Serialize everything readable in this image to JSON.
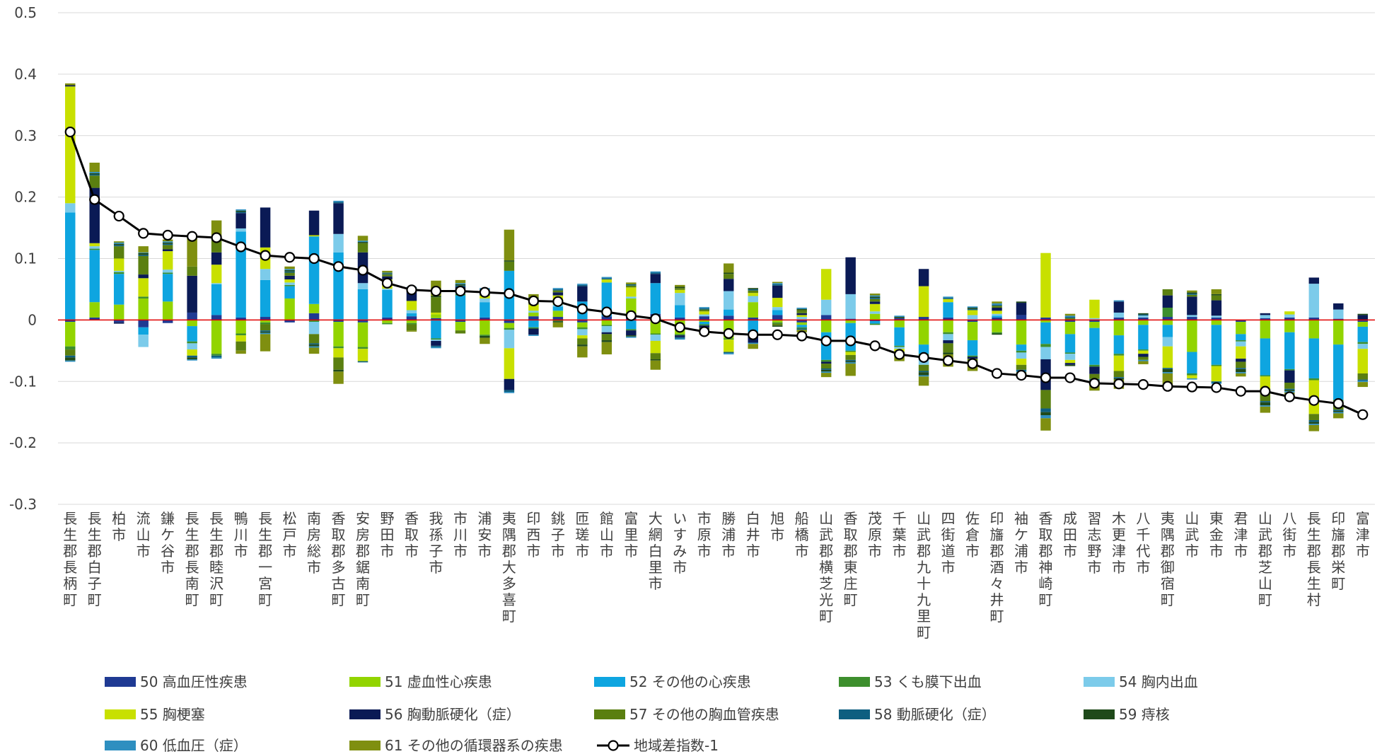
{
  "chart_data": {
    "type": "bar",
    "stacked": true,
    "ylim": [
      -0.3,
      0.5
    ],
    "yticks": [
      -0.3,
      -0.2,
      -0.1,
      0,
      0.1,
      0.2,
      0.3,
      0.4,
      0.5
    ],
    "ytick_labels": [
      "-0.3",
      "-0.2",
      "-0.1",
      "0",
      "0.1",
      "0.2",
      "0.3",
      "0.4",
      "0.5"
    ],
    "grid": true,
    "zero_line_color": "#e00000",
    "legend_position": "bottom",
    "categories": [
      "長生郡長柄町",
      "長生郡白子町",
      "柏市",
      "流山市",
      "鎌ケ谷市",
      "長生郡長南町",
      "長生郡睦沢町",
      "鴨川市",
      "長生郡一宮町",
      "松戸市",
      "南房総市",
      "香取郡多古町",
      "安房郡鋸南町",
      "野田市",
      "香取市",
      "我孫子市",
      "市川市",
      "浦安市",
      "夷隅郡大多喜町",
      "印西市",
      "銚子市",
      "匝瑳市",
      "館山市",
      "富里市",
      "大網白里市",
      "いすみ市",
      "市原市",
      "勝浦市",
      "白井市",
      "旭市",
      "船橋市",
      "山武郡横芝光町",
      "香取郡東庄町",
      "茂原市",
      "千葉市",
      "山武郡九十九里町",
      "四街道市",
      "佐倉市",
      "印旛郡酒々井町",
      "袖ケ浦市",
      "香取郡神崎町",
      "成田市",
      "習志野市",
      "木更津市",
      "八千代市",
      "夷隅郡御宿町",
      "山武市",
      "東金市",
      "君津市",
      "山武郡芝山町",
      "八街市",
      "長生郡長生村",
      "印旛郡栄町",
      "富津市"
    ],
    "series": [
      {
        "name": "50 高血圧性疾患",
        "color": "#1f3a93",
        "values": [
          -0.003,
          0.004,
          -0.004,
          -0.012,
          -0.005,
          0.012,
          0.008,
          0.004,
          0.005,
          -0.004,
          0.011,
          -0.003,
          -0.004,
          0.004,
          0.006,
          0.003,
          -0.003,
          0.004,
          -0.005,
          0.006,
          0.005,
          -0.004,
          0.006,
          0.005,
          0.01,
          0.004,
          0.006,
          0.007,
          0.004,
          0.008,
          -0.004,
          0.008,
          0.002,
          -0.002,
          0.003,
          0.005,
          0.004,
          -0.003,
          0.004,
          0.008,
          0.004,
          -0.003,
          -0.003,
          0.004,
          0.004,
          0.005,
          0.005,
          0.004,
          -0.003,
          0.003,
          0.004,
          0.004,
          0.002,
          -0.003
        ]
      },
      {
        "name": "51 虚血性心疾患",
        "color": "#92d400",
        "values": [
          -0.04,
          0.025,
          0.025,
          0.035,
          0.03,
          -0.01,
          -0.055,
          -0.022,
          -0.004,
          0.035,
          0.015,
          -0.04,
          -0.04,
          -0.005,
          -0.005,
          0.006,
          -0.014,
          -0.024,
          -0.008,
          0.006,
          0.01,
          -0.008,
          -0.008,
          0.03,
          -0.022,
          -0.023,
          -0.003,
          -0.03,
          0.025,
          -0.004,
          -0.004,
          -0.02,
          -0.005,
          0.01,
          -0.012,
          -0.04,
          -0.02,
          -0.03,
          -0.02,
          -0.04,
          -0.004,
          -0.02,
          -0.01,
          -0.025,
          -0.008,
          -0.008,
          -0.052,
          -0.008,
          -0.02,
          -0.03,
          -0.02,
          -0.03,
          -0.04,
          -0.008
        ]
      },
      {
        "name": "52 その他の心疾患",
        "color": "#0ea5e0",
        "values": [
          0.175,
          0.085,
          0.05,
          -0.012,
          0.045,
          -0.025,
          0.05,
          0.14,
          0.06,
          0.02,
          0.11,
          0.11,
          0.05,
          0.045,
          0.005,
          -0.03,
          0.04,
          0.025,
          0.08,
          -0.012,
          0.007,
          0.03,
          0.055,
          -0.015,
          0.05,
          0.02,
          -0.004,
          0.01,
          -0.025,
          0.008,
          -0.004,
          -0.045,
          -0.045,
          -0.004,
          -0.03,
          -0.015,
          0.025,
          -0.025,
          0.003,
          -0.01,
          -0.035,
          -0.03,
          -0.06,
          -0.03,
          -0.04,
          -0.02,
          -0.035,
          -0.065,
          -0.01,
          -0.06,
          -0.06,
          -0.065,
          -0.09,
          -0.025
        ]
      },
      {
        "name": "53 くも膜下出血",
        "color": "#3d8f2d",
        "values": [
          -0.005,
          0.002,
          0.003,
          0.003,
          0.002,
          -0.003,
          -0.003,
          -0.003,
          -0.003,
          0.002,
          -0.003,
          -0.003,
          -0.003,
          -0.002,
          -0.002,
          -0.002,
          0.002,
          -0.002,
          -0.003,
          -0.002,
          -0.002,
          -0.003,
          -0.002,
          -0.002,
          -0.002,
          -0.002,
          -0.002,
          -0.002,
          -0.002,
          -0.002,
          -0.002,
          -0.003,
          -0.002,
          -0.002,
          -0.002,
          -0.003,
          -0.003,
          -0.002,
          -0.002,
          -0.003,
          -0.005,
          -0.002,
          -0.003,
          -0.003,
          -0.002,
          0.015,
          -0.003,
          -0.002,
          -0.002,
          -0.002,
          -0.002,
          -0.003,
          -0.003,
          -0.003
        ]
      },
      {
        "name": "54 胸内出血",
        "color": "#7ccbea",
        "values": [
          0.015,
          0.004,
          0.002,
          -0.02,
          0.005,
          -0.01,
          0.002,
          0.005,
          0.018,
          0.004,
          -0.02,
          0.03,
          0.01,
          0.002,
          0.005,
          -0.002,
          0.003,
          0.006,
          -0.03,
          0.003,
          0.003,
          -0.01,
          -0.01,
          0.003,
          -0.01,
          0.02,
          0.003,
          0.03,
          0.01,
          0.005,
          0.005,
          0.025,
          0.04,
          0.004,
          -0.003,
          -0.015,
          -0.01,
          0.008,
          0.003,
          -0.01,
          -0.02,
          -0.01,
          0.003,
          0.008,
          0.003,
          -0.015,
          0.003,
          0.003,
          -0.008,
          0.005,
          0.005,
          0.055,
          0.015,
          -0.008
        ]
      },
      {
        "name": "55 胸梗塞",
        "color": "#c8e000",
        "values": [
          0.19,
          0.005,
          0.02,
          0.03,
          0.03,
          -0.01,
          0.03,
          -0.01,
          0.035,
          0.005,
          0.002,
          -0.015,
          -0.02,
          0.015,
          0.015,
          0.003,
          0.005,
          0.005,
          -0.05,
          0.01,
          0.015,
          -0.005,
          0.005,
          0.015,
          -0.02,
          0.005,
          0.005,
          -0.02,
          0.005,
          0.015,
          0.003,
          0.05,
          -0.005,
          0.012,
          -0.005,
          0.05,
          0.005,
          0.008,
          0.005,
          -0.01,
          0.105,
          -0.005,
          0.03,
          -0.025,
          -0.005,
          -0.035,
          -0.005,
          -0.025,
          -0.02,
          -0.02,
          0.005,
          -0.055,
          -0.005,
          -0.04
        ]
      },
      {
        "name": "56 胸動脈硬化（症）",
        "color": "#0a1a55",
        "values": [
          0.002,
          0.09,
          -0.002,
          0.006,
          0.003,
          0.06,
          0.02,
          0.025,
          0.065,
          0.006,
          0.04,
          0.05,
          0.05,
          0.005,
          0.02,
          -0.008,
          0.004,
          0.005,
          -0.018,
          -0.01,
          0.005,
          0.025,
          -0.003,
          -0.008,
          0.015,
          -0.003,
          -0.003,
          0.02,
          -0.01,
          0.02,
          0.003,
          -0.003,
          0.06,
          0.004,
          -0.002,
          0.028,
          -0.005,
          -0.003,
          0.005,
          0.02,
          -0.05,
          -0.003,
          -0.012,
          0.018,
          -0.005,
          0.02,
          0.03,
          0.025,
          -0.005,
          0.003,
          -0.02,
          0.01,
          0.01,
          0.008
        ]
      },
      {
        "name": "57 その他の胸血管疾患",
        "color": "#5a7f10",
        "values": [
          -0.01,
          0.02,
          0.02,
          0.03,
          0.007,
          0.015,
          0.02,
          -0.015,
          -0.01,
          0.005,
          -0.015,
          -0.02,
          0.015,
          0.003,
          -0.01,
          0.025,
          -0.005,
          0.003,
          0.015,
          0.008,
          0.003,
          -0.01,
          -0.01,
          0.003,
          -0.01,
          0.003,
          0.003,
          0.008,
          0.004,
          -0.003,
          0.005,
          -0.008,
          -0.008,
          0.004,
          -0.003,
          -0.01,
          -0.015,
          -0.01,
          0.003,
          -0.008,
          -0.03,
          0.003,
          -0.008,
          -0.01,
          -0.005,
          0.01,
          0.003,
          0.008,
          -0.01,
          -0.02,
          -0.01,
          -0.01,
          -0.008,
          -0.01
        ]
      },
      {
        "name": "58 動脈硬化（症）",
        "color": "#0e5f80",
        "values": [
          -0.003,
          0.002,
          0.002,
          0.002,
          0.002,
          -0.003,
          -0.003,
          0.002,
          -0.002,
          0.002,
          -0.002,
          0.002,
          -0.002,
          0.001,
          0.001,
          -0.002,
          0.002,
          0.002,
          -0.003,
          0.002,
          0.002,
          0.002,
          0.002,
          0.002,
          0.002,
          -0.002,
          0.002,
          -0.002,
          0.002,
          0.002,
          -0.002,
          -0.002,
          -0.002,
          0.002,
          -0.002,
          -0.002,
          0.002,
          0.002,
          0.002,
          -0.002,
          -0.006,
          0.002,
          -0.002,
          -0.002,
          0.002,
          -0.002,
          0.002,
          -0.002,
          -0.002,
          -0.002,
          -0.002,
          -0.003,
          -0.002,
          -0.002
        ]
      },
      {
        "name": "59 痔核",
        "color": "#1f4a1a",
        "values": [
          -0.005,
          0.002,
          0.002,
          0.003,
          0.002,
          -0.003,
          0.002,
          0.002,
          -0.002,
          0.002,
          -0.003,
          -0.003,
          0.002,
          0.001,
          0.001,
          0.002,
          0.002,
          -0.003,
          0.002,
          0.002,
          -0.002,
          -0.003,
          -0.003,
          -0.002,
          -0.002,
          0.002,
          -0.002,
          0.002,
          0.002,
          -0.002,
          0.002,
          -0.003,
          -0.002,
          0.002,
          0.002,
          -0.005,
          -0.003,
          0.002,
          -0.002,
          0.002,
          -0.005,
          -0.002,
          -0.003,
          -0.002,
          0.002,
          -0.005,
          0.002,
          0.002,
          -0.005,
          -0.005,
          -0.002,
          -0.003,
          -0.002,
          0.002
        ]
      },
      {
        "name": "60 低血圧（症）",
        "color": "#2e8fc0",
        "values": [
          -0.002,
          0.002,
          0.002,
          0.001,
          0.002,
          -0.002,
          -0.002,
          0.002,
          -0.002,
          0.002,
          -0.002,
          0.002,
          0.002,
          0.001,
          0.001,
          -0.002,
          0.002,
          0.002,
          -0.002,
          -0.002,
          0.002,
          0.002,
          0.002,
          -0.002,
          0.002,
          -0.002,
          0.002,
          -0.002,
          -0.002,
          0.002,
          0.002,
          -0.002,
          -0.002,
          0.002,
          0.002,
          -0.002,
          0.002,
          0.002,
          0.002,
          -0.002,
          -0.005,
          0.002,
          -0.002,
          0.002,
          -0.002,
          -0.002,
          -0.002,
          -0.002,
          -0.002,
          -0.002,
          -0.002,
          -0.002,
          -0.002,
          -0.002
        ]
      },
      {
        "name": "61 その他の循環器系の疾患",
        "color": "#7f8f10",
        "values": [
          0.003,
          0.015,
          0.002,
          0.01,
          0.003,
          0.05,
          0.03,
          -0.005,
          -0.028,
          0.004,
          -0.01,
          -0.02,
          0.008,
          0.003,
          -0.002,
          0.025,
          0.005,
          -0.01,
          0.05,
          0.005,
          -0.008,
          -0.018,
          -0.02,
          0.003,
          -0.015,
          0.003,
          -0.01,
          0.015,
          -0.008,
          0.002,
          -0.004,
          -0.007,
          -0.02,
          0.003,
          -0.008,
          -0.015,
          -0.02,
          -0.01,
          0.003,
          -0.008,
          -0.02,
          0.003,
          -0.012,
          -0.015,
          -0.005,
          -0.02,
          0.003,
          0.008,
          -0.005,
          -0.01,
          -0.003,
          -0.01,
          -0.008,
          -0.008
        ]
      }
    ],
    "line": {
      "name": "地域差指数-1",
      "color": "#000000",
      "values": [
        0.306,
        0.196,
        0.169,
        0.141,
        0.138,
        0.136,
        0.134,
        0.119,
        0.105,
        0.102,
        0.1,
        0.087,
        0.081,
        0.06,
        0.049,
        0.047,
        0.047,
        0.045,
        0.043,
        0.031,
        0.03,
        0.018,
        0.013,
        0.007,
        0.002,
        -0.012,
        -0.019,
        -0.022,
        -0.024,
        -0.024,
        -0.026,
        -0.034,
        -0.034,
        -0.042,
        -0.056,
        -0.061,
        -0.066,
        -0.071,
        -0.087,
        -0.09,
        -0.094,
        -0.094,
        -0.103,
        -0.104,
        -0.105,
        -0.108,
        -0.109,
        -0.11,
        -0.116,
        -0.116,
        -0.125,
        -0.131,
        -0.136,
        -0.154
      ]
    }
  }
}
